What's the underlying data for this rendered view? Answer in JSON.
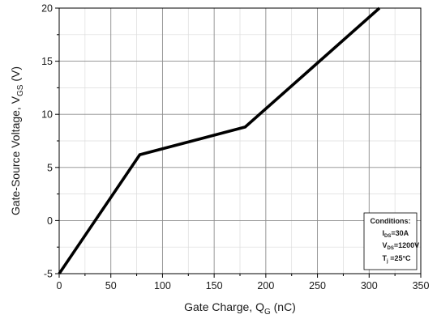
{
  "chart_data": {
    "type": "line",
    "title": "",
    "xlabel": {
      "text": "Gate Charge, Q",
      "sub": "G",
      "unit": " (nC)"
    },
    "ylabel": {
      "text": "Gate-Source Voltage, V",
      "sub": "GS",
      "unit": " (V)"
    },
    "xlim": [
      0,
      350
    ],
    "ylim": [
      -5,
      20
    ],
    "xticks": [
      0,
      50,
      100,
      150,
      200,
      250,
      300,
      350
    ],
    "yticks": [
      -5,
      0,
      5,
      10,
      15,
      20
    ],
    "grid": true,
    "series": [
      {
        "x": [
          0,
          78,
          180,
          310
        ],
        "y": [
          -5,
          6.2,
          8.8,
          20
        ],
        "color": "#000000"
      }
    ],
    "annotation": {
      "placement": "bottom-right",
      "title": "Conditions:",
      "lines": [
        {
          "main": "I",
          "sub": "DS",
          "rest": "=30A"
        },
        {
          "main": "V",
          "sub": "DS",
          "rest": "=1200V"
        },
        {
          "main": "T",
          "sub": "j",
          "rest": " =25°C"
        }
      ]
    }
  }
}
